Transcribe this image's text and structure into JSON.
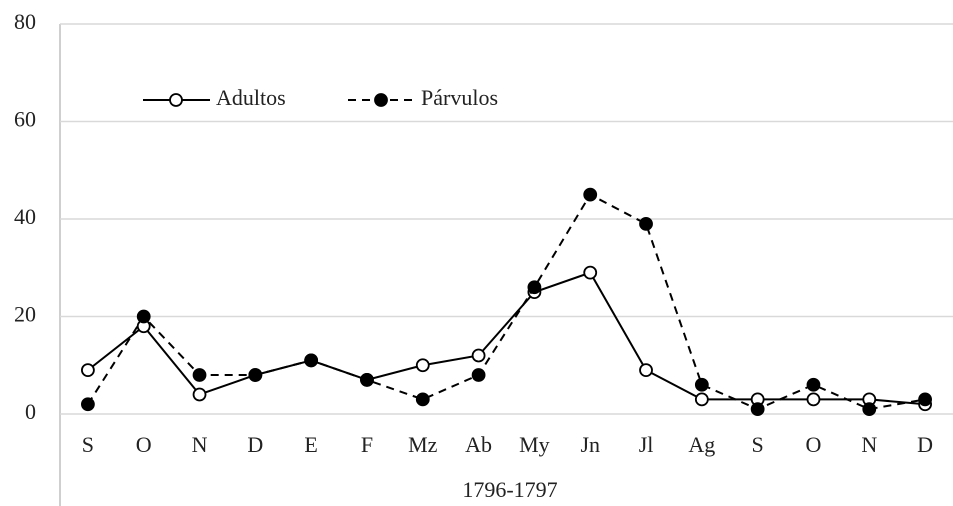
{
  "chart_data": {
    "type": "line",
    "categories": [
      "S",
      "O",
      "N",
      "D",
      "E",
      "F",
      "Mz",
      "Ab",
      "My",
      "Jn",
      "Jl",
      "Ag",
      "S",
      "O",
      "N",
      "D"
    ],
    "x_label": "1796-1797",
    "series": [
      {
        "name": "Adultos",
        "color": "#000000",
        "values": [
          9,
          18,
          4,
          8,
          11,
          7,
          10,
          12,
          25,
          29,
          9,
          3,
          3,
          3,
          3,
          2
        ]
      },
      {
        "name": "Párvulos",
        "color": "#000000",
        "values": [
          2,
          20,
          8,
          8,
          11,
          7,
          3,
          8,
          26,
          45,
          39,
          6,
          1,
          6,
          1,
          3
        ]
      }
    ],
    "ylim": [
      0,
      80
    ],
    "yticks": [
      0,
      20,
      40,
      60,
      80
    ],
    "grid": true,
    "legend": "upper left"
  }
}
